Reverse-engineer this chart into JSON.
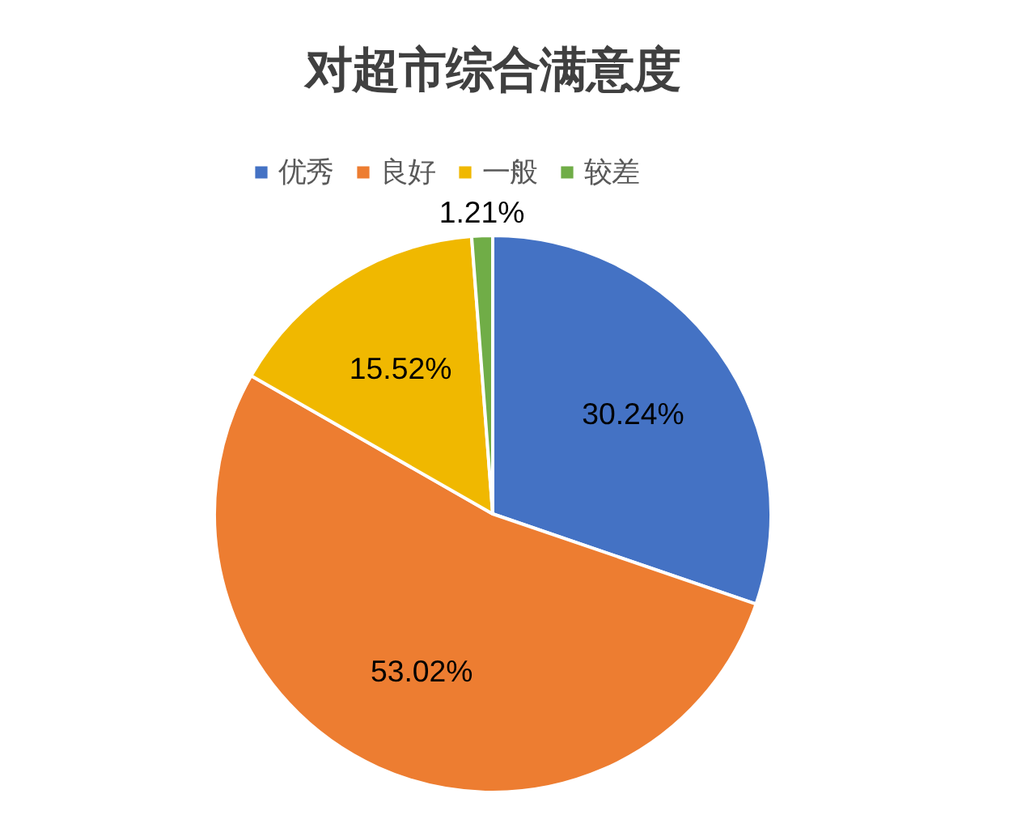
{
  "chart_data": {
    "type": "pie",
    "title": "对超市综合满意度",
    "categories": [
      "优秀",
      "良好",
      "一般",
      "较差"
    ],
    "values": [
      30.24,
      53.02,
      15.52,
      1.21
    ],
    "colors": [
      "#4472c4",
      "#ed7d31",
      "#f0b800",
      "#70ad47"
    ],
    "value_labels": [
      "30.24%",
      "53.02%",
      "15.52%",
      "1.21%"
    ],
    "legend": "top"
  }
}
